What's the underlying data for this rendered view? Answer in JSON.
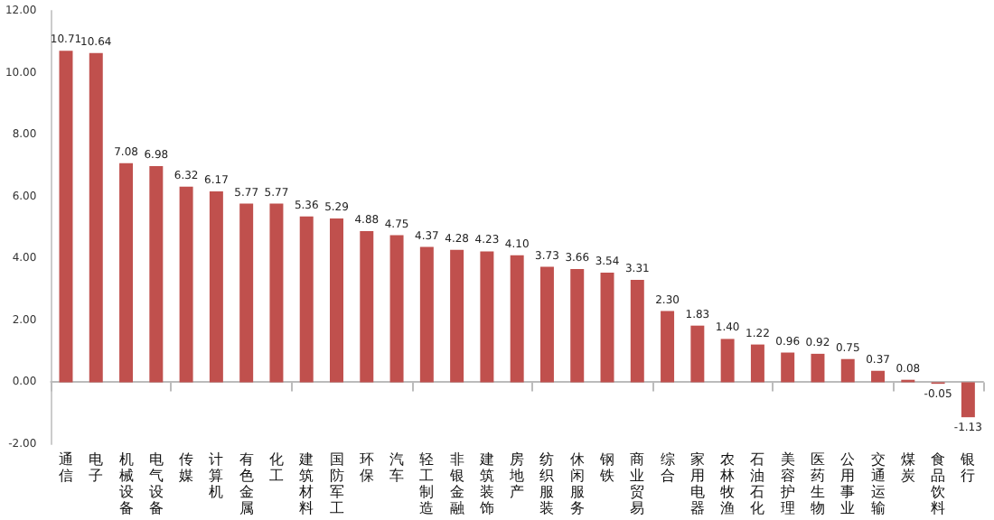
{
  "chart_data": {
    "type": "bar",
    "categories": [
      "通信",
      "电子",
      "机械设备",
      "电气设备",
      "传媒",
      "计算机",
      "有色金属",
      "化工",
      "建筑材料",
      "国防军工",
      "环保",
      "汽车",
      "轻工制造",
      "非银金融",
      "建筑装饰",
      "房地产",
      "纺织服装",
      "休闲服务",
      "钢铁",
      "商业贸易",
      "综合",
      "家用电器",
      "农林牧渔",
      "石油石化",
      "美容护理",
      "医药生物",
      "公用事业",
      "交通运输",
      "煤炭",
      "食品饮料",
      "银行"
    ],
    "values": [
      10.71,
      10.64,
      7.08,
      6.98,
      6.32,
      6.17,
      5.77,
      5.77,
      5.36,
      5.29,
      4.88,
      4.75,
      4.37,
      4.28,
      4.23,
      4.1,
      3.73,
      3.66,
      3.54,
      3.31,
      2.3,
      1.83,
      1.4,
      1.22,
      0.96,
      0.92,
      0.75,
      0.37,
      0.08,
      -0.05,
      -1.13
    ],
    "value_labels": [
      "10.71",
      "10.64",
      "7.08",
      "6.98",
      "6.32",
      "6.17",
      "5.77",
      "5.77",
      "5.36",
      "5.29",
      "4.88",
      "4.75",
      "4.37",
      "4.28",
      "4.23",
      "4.10",
      "3.73",
      "3.66",
      "3.54",
      "3.31",
      "2.30",
      "1.83",
      "1.40",
      "1.22",
      "0.96",
      "0.92",
      "0.75",
      "0.37",
      "0.08",
      "-0.05",
      "-1.13"
    ],
    "color": "#c0504d",
    "ylim": [
      -2,
      12
    ],
    "yticks": [
      {
        "value": -2,
        "label": "-2.00"
      },
      {
        "value": 0,
        "label": "0.00"
      },
      {
        "value": 2,
        "label": "2.00"
      },
      {
        "value": 4,
        "label": "4.00"
      },
      {
        "value": 6,
        "label": "6.00"
      },
      {
        "value": 8,
        "label": "8.00"
      },
      {
        "value": 10,
        "label": "10.00"
      },
      {
        "value": 12,
        "label": "12.00"
      }
    ]
  }
}
